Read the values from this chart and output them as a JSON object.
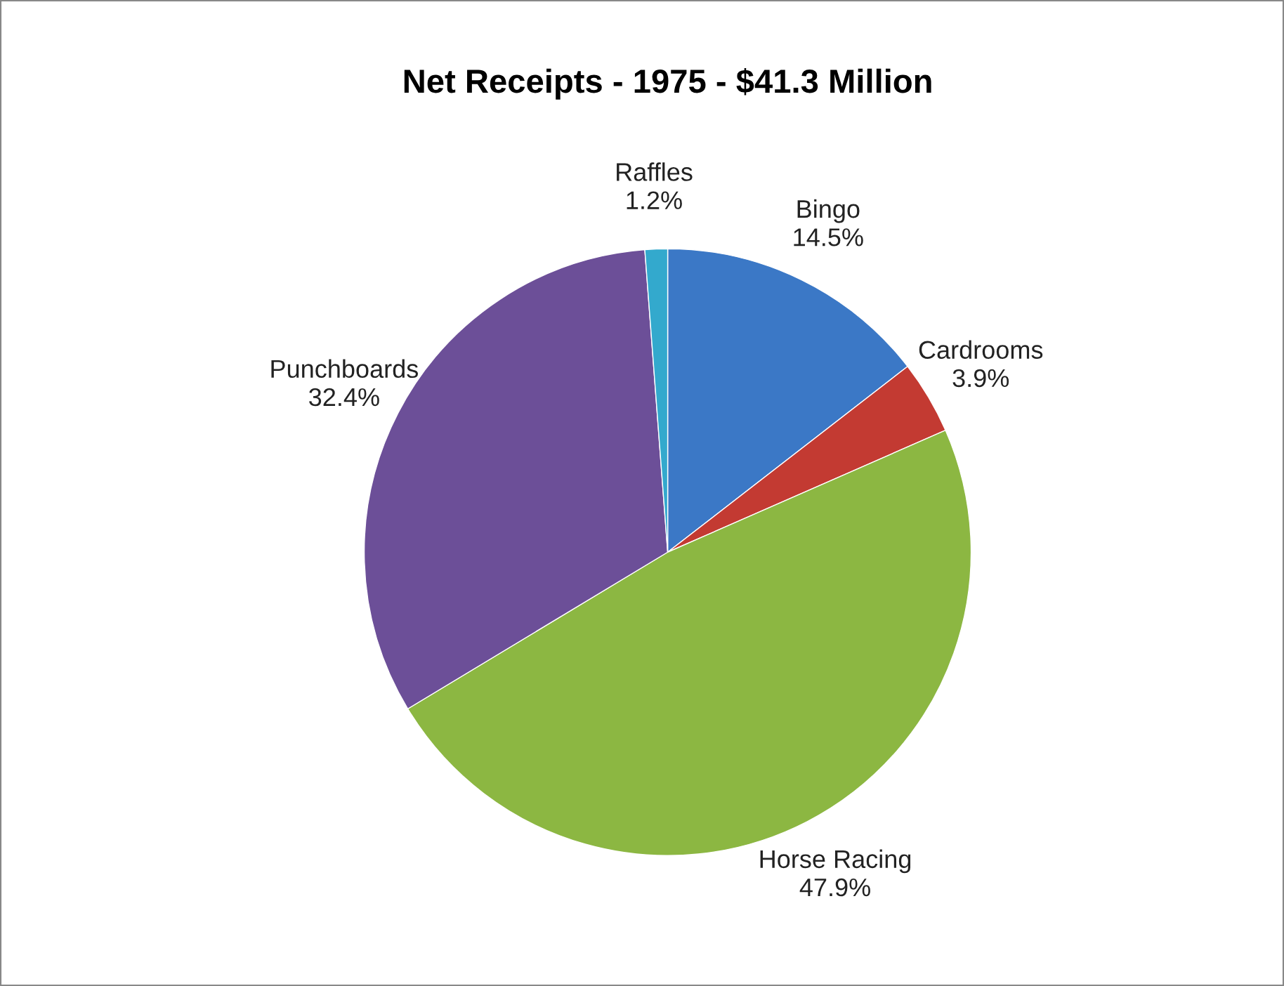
{
  "chart_data": {
    "type": "pie",
    "title": "Net Receipts - 1975 - $41.3 Million",
    "categories": [
      "Bingo",
      "Cardrooms",
      "Horse Racing",
      "Punchboards",
      "Raffles"
    ],
    "values": [
      14.5,
      3.9,
      47.9,
      32.4,
      1.2
    ],
    "value_labels": [
      "14.5%",
      "3.9%",
      "47.9%",
      "32.4%",
      "1.2%"
    ],
    "colors": [
      "#3b78c6",
      "#c33a32",
      "#8cb742",
      "#6c4f98",
      "#33a9cd"
    ],
    "legend": false
  }
}
